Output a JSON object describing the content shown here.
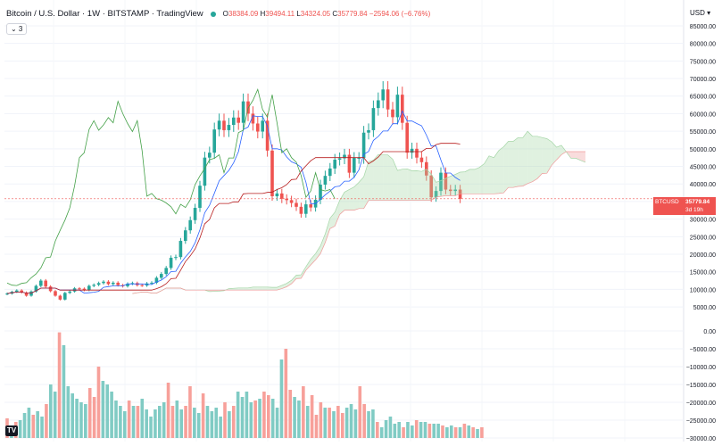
{
  "header": {
    "title": "Bitcoin / U.S. Dollar · 1W · BITSTAMP · TradingView",
    "ohlc": [
      {
        "k": "O",
        "v": "38384.09"
      },
      {
        "k": "H",
        "v": "39494.11"
      },
      {
        "k": "L",
        "v": "34324.05"
      },
      {
        "k": "C",
        "v": "35779.84"
      },
      {
        "k": "",
        "v": "−2594.06 (−6.76%)"
      }
    ],
    "indicator_toggle": "⌄ 3",
    "currency": "USD ▾"
  },
  "price_tag": {
    "symbol": "BTCUSD",
    "price": "35779.84",
    "countdown": "3d 19h"
  },
  "colors": {
    "up": "#26a69a",
    "down": "#ef5350",
    "conversion": "#2962ff",
    "base": "#b71c1c",
    "lagging": "#43a047",
    "cloud_bull": "#a5d6a7",
    "cloud_bear": "#ef9a9a",
    "vol_up": "#80cbc4",
    "vol_down": "#f7a09a"
  },
  "chart_data": [
    {
      "type": "candlestick",
      "title": "Bitcoin / U.S. Dollar",
      "yaxis_ticks": [
        "85000.00",
        "80000.00",
        "75000.00",
        "70000.00",
        "65000.00",
        "60000.00",
        "55000.00",
        "50000.00",
        "45000.00",
        "40000.00",
        "35000.00",
        "30000.00",
        "25000.00",
        "20000.00",
        "15000.00",
        "10000.00",
        "5000.00"
      ],
      "ylim": [
        3000,
        86000
      ],
      "series": [
        {
          "name": "BTCUSD",
          "close_path": [
            [
              0,
              8800
            ],
            [
              4,
              9300
            ],
            [
              8,
              9700
            ],
            [
              12,
              9100
            ],
            [
              16,
              8200
            ],
            [
              20,
              9400
            ],
            [
              24,
              11000
            ],
            [
              28,
              12500
            ],
            [
              32,
              10800
            ],
            [
              36,
              9500
            ],
            [
              40,
              8200
            ],
            [
              44,
              7100
            ],
            [
              47,
              9000
            ],
            [
              50,
              9400
            ],
            [
              54,
              10300
            ],
            [
              58,
              10200
            ],
            [
              62,
              9800
            ],
            [
              66,
              11000
            ],
            [
              70,
              11300
            ],
            [
              74,
              11800
            ],
            [
              78,
              12200
            ],
            [
              82,
              11500
            ],
            [
              86,
              11900
            ],
            [
              90,
              11200
            ],
            [
              94,
              10900
            ],
            [
              98,
              11600
            ],
            [
              102,
              11800
            ],
            [
              106,
              11200
            ],
            [
              110,
              11100
            ],
            [
              114,
              11700
            ],
            [
              118,
              11900
            ],
            [
              122,
              13300
            ],
            [
              126,
              14400
            ],
            [
              130,
              16100
            ],
            [
              134,
              19000
            ],
            [
              138,
              19200
            ],
            [
              142,
              23800
            ],
            [
              146,
              26800
            ],
            [
              150,
              29700
            ],
            [
              154,
              33200
            ],
            [
              158,
              39500
            ],
            [
              162,
              47500
            ],
            [
              166,
              48900
            ],
            [
              170,
              55500
            ],
            [
              174,
              58000
            ],
            [
              178,
              55300
            ],
            [
              182,
              56800
            ],
            [
              186,
              58900
            ],
            [
              190,
              57400
            ],
            [
              194,
              63500
            ],
            [
              198,
              60000
            ],
            [
              202,
              57200
            ],
            [
              206,
              54900
            ],
            [
              210,
              58000
            ],
            [
              214,
              49500
            ],
            [
              218,
              36500
            ],
            [
              222,
              37300
            ],
            [
              226,
              35800
            ],
            [
              230,
              35400
            ],
            [
              234,
              34600
            ],
            [
              238,
              33500
            ],
            [
              242,
              31500
            ],
            [
              246,
              34200
            ],
            [
              250,
              33300
            ],
            [
              254,
              35500
            ],
            [
              258,
              39800
            ],
            [
              262,
              42300
            ],
            [
              266,
              44400
            ],
            [
              270,
              46900
            ],
            [
              274,
              47300
            ],
            [
              278,
              48300
            ],
            [
              282,
              43200
            ],
            [
              286,
              47400
            ],
            [
              290,
              47400
            ],
            [
              294,
              54600
            ],
            [
              298,
              55300
            ],
            [
              302,
              61600
            ],
            [
              306,
              63800
            ],
            [
              310,
              66900
            ],
            [
              314,
              61200
            ],
            [
              318,
              59000
            ],
            [
              322,
              65400
            ],
            [
              326,
              57400
            ],
            [
              330,
              48900
            ],
            [
              334,
              50000
            ],
            [
              338,
              47500
            ],
            [
              342,
              46200
            ],
            [
              346,
              42400
            ],
            [
              350,
              36200
            ],
            [
              354,
              38000
            ],
            [
              358,
              43200
            ],
            [
              362,
              38400
            ],
            [
              366,
              38000
            ],
            [
              370,
              38400
            ],
            [
              374,
              35800
            ]
          ]
        },
        {
          "name": "Conversion Line",
          "color": "#2962ff"
        },
        {
          "name": "Base Line",
          "color": "#b71c1c"
        },
        {
          "name": "Lagging Span",
          "color": "#43a047"
        },
        {
          "name": "Leading Span A"
        },
        {
          "name": "Leading Span B"
        }
      ]
    },
    {
      "type": "bar",
      "title": "Volume",
      "yaxis_ticks": [
        "0.00",
        "−5000.00",
        "−10000.00",
        "−15000.00",
        "−20000.00",
        "−25000.00",
        "−30000.00"
      ],
      "values": [
        {
          "v": -24500,
          "c": "down"
        },
        {
          "v": -26500,
          "c": "up"
        },
        {
          "v": -25500,
          "c": "down"
        },
        {
          "v": -25000,
          "c": "up"
        },
        {
          "v": -23000,
          "c": "up"
        },
        {
          "v": -21500,
          "c": "up"
        },
        {
          "v": -23500,
          "c": "down"
        },
        {
          "v": -22500,
          "c": "up"
        },
        {
          "v": -24000,
          "c": "up"
        },
        {
          "v": -20500,
          "c": "down"
        },
        {
          "v": -15000,
          "c": "up"
        },
        {
          "v": -17000,
          "c": "up"
        },
        {
          "v": -400,
          "c": "down"
        },
        {
          "v": -4000,
          "c": "up"
        },
        {
          "v": -15500,
          "c": "up"
        },
        {
          "v": -17500,
          "c": "up"
        },
        {
          "v": -19000,
          "c": "up"
        },
        {
          "v": -20000,
          "c": "up"
        },
        {
          "v": -20500,
          "c": "up"
        },
        {
          "v": -16000,
          "c": "down"
        },
        {
          "v": -18500,
          "c": "down"
        },
        {
          "v": -10000,
          "c": "down"
        },
        {
          "v": -14000,
          "c": "up"
        },
        {
          "v": -15000,
          "c": "up"
        },
        {
          "v": -17000,
          "c": "up"
        },
        {
          "v": -19500,
          "c": "up"
        },
        {
          "v": -21000,
          "c": "up"
        },
        {
          "v": -22500,
          "c": "up"
        },
        {
          "v": -19500,
          "c": "down"
        },
        {
          "v": -21000,
          "c": "up"
        },
        {
          "v": -21000,
          "c": "down"
        },
        {
          "v": -19000,
          "c": "up"
        },
        {
          "v": -22000,
          "c": "up"
        },
        {
          "v": -24000,
          "c": "up"
        },
        {
          "v": -22000,
          "c": "up"
        },
        {
          "v": -21000,
          "c": "up"
        },
        {
          "v": -20000,
          "c": "up"
        },
        {
          "v": -14500,
          "c": "down"
        },
        {
          "v": -21000,
          "c": "down"
        },
        {
          "v": -19500,
          "c": "up"
        },
        {
          "v": -22000,
          "c": "up"
        },
        {
          "v": -21000,
          "c": "down"
        },
        {
          "v": -15500,
          "c": "down"
        },
        {
          "v": -21500,
          "c": "up"
        },
        {
          "v": -23000,
          "c": "up"
        },
        {
          "v": -17500,
          "c": "down"
        },
        {
          "v": -21000,
          "c": "up"
        },
        {
          "v": -22500,
          "c": "up"
        },
        {
          "v": -21500,
          "c": "up"
        },
        {
          "v": -24000,
          "c": "up"
        },
        {
          "v": -20000,
          "c": "down"
        },
        {
          "v": -22500,
          "c": "up"
        },
        {
          "v": -21000,
          "c": "down"
        },
        {
          "v": -17000,
          "c": "up"
        },
        {
          "v": -18500,
          "c": "up"
        },
        {
          "v": -17000,
          "c": "up"
        },
        {
          "v": -20000,
          "c": "up"
        },
        {
          "v": -19500,
          "c": "down"
        },
        {
          "v": -19000,
          "c": "up"
        },
        {
          "v": -17000,
          "c": "down"
        },
        {
          "v": -18000,
          "c": "down"
        },
        {
          "v": -19000,
          "c": "up"
        },
        {
          "v": -21500,
          "c": "up"
        },
        {
          "v": -8000,
          "c": "up"
        },
        {
          "v": -5000,
          "c": "down"
        },
        {
          "v": -16500,
          "c": "down"
        },
        {
          "v": -18500,
          "c": "up"
        },
        {
          "v": -19500,
          "c": "up"
        },
        {
          "v": -15500,
          "c": "down"
        },
        {
          "v": -21000,
          "c": "up"
        },
        {
          "v": -18000,
          "c": "down"
        },
        {
          "v": -23500,
          "c": "down"
        },
        {
          "v": -20000,
          "c": "down"
        },
        {
          "v": -21500,
          "c": "up"
        },
        {
          "v": -21500,
          "c": "down"
        },
        {
          "v": -22500,
          "c": "up"
        },
        {
          "v": -21000,
          "c": "down"
        },
        {
          "v": -23000,
          "c": "down"
        },
        {
          "v": -21500,
          "c": "up"
        },
        {
          "v": -20500,
          "c": "up"
        },
        {
          "v": -22000,
          "c": "up"
        },
        {
          "v": -15500,
          "c": "down"
        },
        {
          "v": -20500,
          "c": "down"
        },
        {
          "v": -22500,
          "c": "up"
        },
        {
          "v": -22000,
          "c": "up"
        },
        {
          "v": -25500,
          "c": "down"
        },
        {
          "v": -27000,
          "c": "up"
        },
        {
          "v": -25000,
          "c": "up"
        },
        {
          "v": -24000,
          "c": "up"
        },
        {
          "v": -26000,
          "c": "up"
        },
        {
          "v": -25500,
          "c": "up"
        },
        {
          "v": -27000,
          "c": "down"
        },
        {
          "v": -25500,
          "c": "up"
        },
        {
          "v": -26500,
          "c": "up"
        },
        {
          "v": -25000,
          "c": "down"
        },
        {
          "v": -25500,
          "c": "up"
        },
        {
          "v": -25500,
          "c": "up"
        },
        {
          "v": -26000,
          "c": "down"
        },
        {
          "v": -26000,
          "c": "up"
        },
        {
          "v": -26000,
          "c": "up"
        },
        {
          "v": -26500,
          "c": "down"
        },
        {
          "v": -27000,
          "c": "up"
        },
        {
          "v": -26500,
          "c": "up"
        },
        {
          "v": -27000,
          "c": "down"
        },
        {
          "v": -27000,
          "c": "up"
        },
        {
          "v": -26000,
          "c": "down"
        },
        {
          "v": -26500,
          "c": "up"
        },
        {
          "v": -27000,
          "c": "down"
        },
        {
          "v": -27500,
          "c": "up"
        },
        {
          "v": -27000,
          "c": "down"
        }
      ]
    }
  ]
}
